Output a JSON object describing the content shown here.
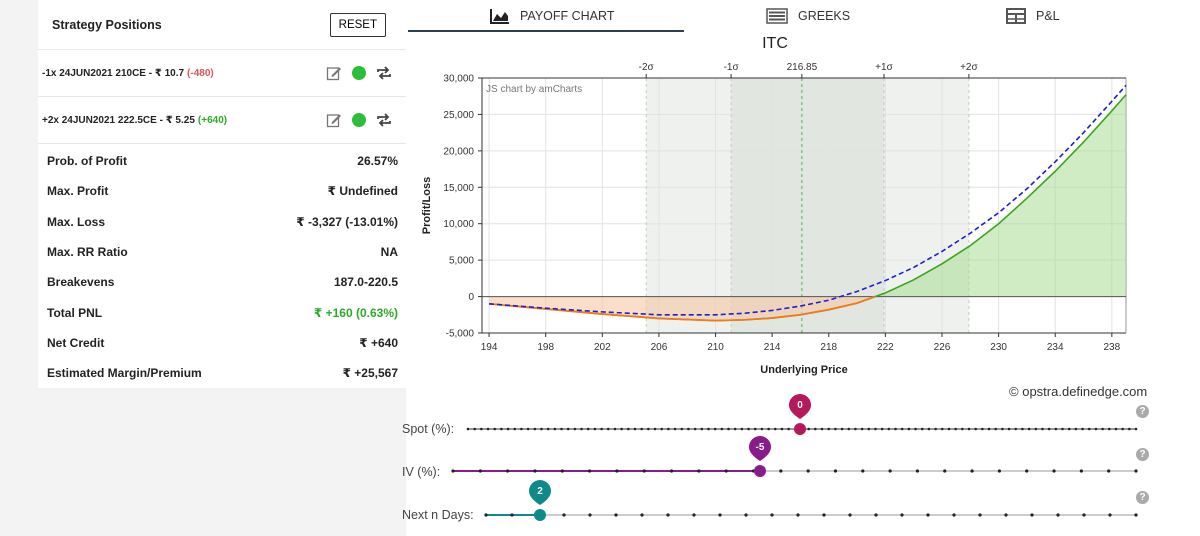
{
  "strategy": {
    "title": "Strategy Positions",
    "reset_label": "RESET",
    "legs": [
      {
        "text": "-1x  24JUN2021  210CE  - ₹ 10.7",
        "pnl": "(-480)",
        "pnl_color": "#e05555"
      },
      {
        "text": "+2x  24JUN2021  222.5CE  - ₹ 5.25",
        "pnl": "(+640)",
        "pnl_color": "#2bab2b"
      }
    ],
    "stats": [
      {
        "label": "Prob. of Profit",
        "value": "26.57%",
        "color": "#222"
      },
      {
        "label": "Max. Profit",
        "value": "₹ Undefined",
        "color": "#222"
      },
      {
        "label": "Max. Loss",
        "value": "₹ -3,327 (-13.01%)",
        "color": "#222"
      },
      {
        "label": "Max. RR Ratio",
        "value": "NA",
        "color": "#222"
      },
      {
        "label": "Breakevens",
        "value": "187.0-220.5",
        "color": "#222"
      },
      {
        "label": "Total PNL",
        "value": "₹ +160 (0.63%)",
        "color": "#2bab2b"
      },
      {
        "label": "Net Credit",
        "value": "₹ +640",
        "color": "#222"
      },
      {
        "label": "Estimated Margin/Premium",
        "value": "₹ +25,567",
        "color": "#222"
      }
    ]
  },
  "tabs": [
    {
      "label": "PAYOFF CHART",
      "icon": "area-chart-icon",
      "active": true
    },
    {
      "label": "GREEKS",
      "icon": "list-icon",
      "active": false
    },
    {
      "label": "P&L",
      "icon": "table-icon",
      "active": false
    }
  ],
  "chart_data": {
    "type": "line",
    "title": "ITC",
    "xlabel": "Underlying Price",
    "ylabel": "Profit/Loss",
    "watermark": "JS chart by amCharts",
    "xlim": [
      193.5,
      239
    ],
    "ylim": [
      -5000,
      30000
    ],
    "x_ticks": [
      194,
      198,
      202,
      206,
      210,
      214,
      218,
      222,
      226,
      230,
      234,
      238
    ],
    "y_ticks": [
      -5000,
      0,
      5000,
      10000,
      15000,
      20000,
      25000,
      30000
    ],
    "y_tick_labels": [
      "-5,000",
      "0",
      "5,000",
      "10,000",
      "15,000",
      "20,000",
      "25,000",
      "30,000"
    ],
    "top_markers": [
      {
        "label": "-2σ",
        "x": 205.1
      },
      {
        "label": "-1σ",
        "x": 211.1
      },
      {
        "label": "216.85",
        "x": 216.1
      },
      {
        "label": "+1σ",
        "x": 221.9
      },
      {
        "label": "+2σ",
        "x": 227.9
      }
    ],
    "series": [
      {
        "name": "expiry",
        "color": "#3aa51c",
        "style": "solid",
        "x": [
          194,
          198,
          202,
          206,
          210,
          212,
          214,
          216,
          218,
          220,
          222,
          224,
          226,
          228,
          230,
          232,
          234,
          236,
          238,
          239
        ],
        "y": [
          -1000,
          -1700,
          -2400,
          -3000,
          -3300,
          -3200,
          -2950,
          -2500,
          -1800,
          -900,
          500,
          2300,
          4500,
          7000,
          10000,
          13500,
          17200,
          21200,
          25500,
          27700
        ]
      },
      {
        "name": "target",
        "color": "#1f1fcc",
        "style": "dashed",
        "x": [
          194,
          198,
          202,
          206,
          210,
          212,
          214,
          216,
          218,
          220,
          222,
          224,
          226,
          228,
          230,
          232,
          234,
          236,
          238,
          239
        ],
        "y": [
          -1000,
          -1600,
          -2100,
          -2500,
          -2500,
          -2300,
          -1900,
          -1300,
          -500,
          700,
          2200,
          4000,
          6200,
          8700,
          11500,
          14800,
          18500,
          22500,
          26800,
          29000
        ]
      }
    ]
  },
  "credit": "opstra.definedge.com",
  "sliders": [
    {
      "label": "Spot (%):",
      "value": "0",
      "color": "#b5195b"
    },
    {
      "label": "IV (%):",
      "value": "-5",
      "color": "#8a1b8a"
    },
    {
      "label": "Next n Days:",
      "value": "2",
      "color": "#0f8a8a"
    }
  ],
  "help_symbol": "?",
  "copyright_symbol": "©"
}
